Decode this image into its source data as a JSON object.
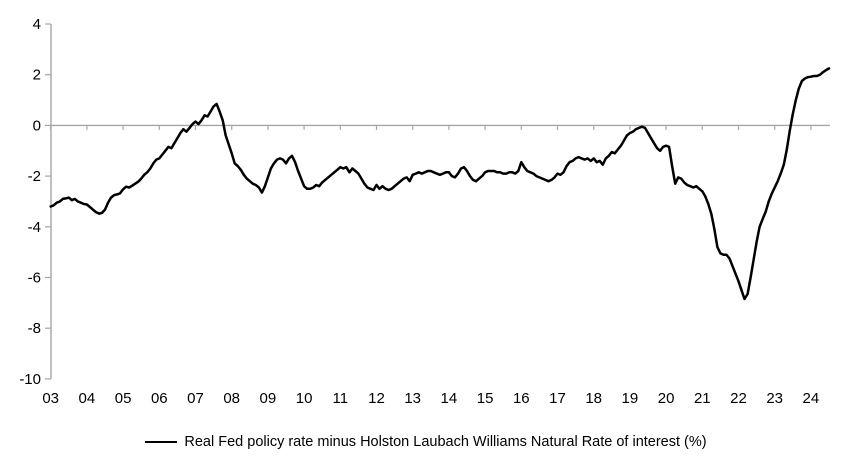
{
  "chart_data": {
    "type": "line",
    "title": "",
    "legend": "Real Fed policy rate minus Holston Laubach Williams Natural Rate of interest (%)",
    "legend_position": "bottom-center",
    "grid": "zero-line-only",
    "line_color": "#000000",
    "axis_color": "#a6a6a6",
    "text_color": "#000000",
    "ylim": [
      -10,
      4
    ],
    "y_tick_values": [
      4,
      2,
      0,
      -2,
      -4,
      -6,
      -8,
      -10
    ],
    "y_tick_labels": [
      "4",
      "2",
      "0",
      "-2",
      "-4",
      "-6",
      "-8",
      "-10"
    ],
    "x_tick_labels": [
      "03",
      "04",
      "05",
      "06",
      "07",
      "08",
      "09",
      "10",
      "11",
      "12",
      "13",
      "14",
      "15",
      "16",
      "17",
      "18",
      "19",
      "20",
      "21",
      "22",
      "23",
      "24"
    ],
    "x_start_year": 2003,
    "series": [
      {
        "name": "Real Fed policy rate minus Holston Laubach Williams Natural Rate of interest (%)",
        "frequency": "monthly",
        "start": "2003-01",
        "end": "2024-07",
        "values": [
          -3.2,
          -3.15,
          -3.05,
          -3.0,
          -2.9,
          -2.88,
          -2.85,
          -2.95,
          -2.9,
          -3.0,
          -3.05,
          -3.1,
          -3.12,
          -3.22,
          -3.32,
          -3.42,
          -3.48,
          -3.45,
          -3.32,
          -3.05,
          -2.85,
          -2.75,
          -2.72,
          -2.68,
          -2.52,
          -2.42,
          -2.45,
          -2.38,
          -2.3,
          -2.22,
          -2.1,
          -1.95,
          -1.85,
          -1.7,
          -1.5,
          -1.35,
          -1.3,
          -1.15,
          -1.0,
          -0.85,
          -0.9,
          -0.7,
          -0.5,
          -0.3,
          -0.15,
          -0.25,
          -0.1,
          0.05,
          0.15,
          0.05,
          0.2,
          0.4,
          0.35,
          0.55,
          0.75,
          0.85,
          0.55,
          0.2,
          -0.4,
          -0.75,
          -1.1,
          -1.5,
          -1.6,
          -1.75,
          -1.95,
          -2.1,
          -2.2,
          -2.3,
          -2.35,
          -2.45,
          -2.65,
          -2.4,
          -2.05,
          -1.7,
          -1.5,
          -1.35,
          -1.3,
          -1.35,
          -1.5,
          -1.3,
          -1.2,
          -1.45,
          -1.8,
          -2.1,
          -2.4,
          -2.5,
          -2.5,
          -2.45,
          -2.35,
          -2.4,
          -2.25,
          -2.15,
          -2.05,
          -1.95,
          -1.85,
          -1.75,
          -1.65,
          -1.7,
          -1.65,
          -1.85,
          -1.7,
          -1.8,
          -1.9,
          -2.1,
          -2.3,
          -2.45,
          -2.5,
          -2.55,
          -2.35,
          -2.5,
          -2.4,
          -2.5,
          -2.55,
          -2.5,
          -2.4,
          -2.3,
          -2.2,
          -2.1,
          -2.05,
          -2.2,
          -1.95,
          -1.9,
          -1.85,
          -1.9,
          -1.85,
          -1.8,
          -1.8,
          -1.85,
          -1.9,
          -1.95,
          -1.9,
          -1.85,
          -1.85,
          -2.0,
          -2.05,
          -1.9,
          -1.7,
          -1.65,
          -1.8,
          -2.0,
          -2.15,
          -2.2,
          -2.1,
          -2.0,
          -1.85,
          -1.8,
          -1.8,
          -1.8,
          -1.85,
          -1.85,
          -1.9,
          -1.9,
          -1.85,
          -1.85,
          -1.9,
          -1.8,
          -1.45,
          -1.65,
          -1.8,
          -1.85,
          -1.9,
          -2.0,
          -2.05,
          -2.1,
          -2.15,
          -2.2,
          -2.15,
          -2.05,
          -1.9,
          -1.95,
          -1.85,
          -1.6,
          -1.45,
          -1.4,
          -1.3,
          -1.25,
          -1.3,
          -1.35,
          -1.3,
          -1.4,
          -1.3,
          -1.45,
          -1.4,
          -1.55,
          -1.3,
          -1.2,
          -1.05,
          -1.1,
          -0.95,
          -0.8,
          -0.6,
          -0.4,
          -0.3,
          -0.25,
          -0.15,
          -0.1,
          -0.05,
          -0.1,
          -0.3,
          -0.5,
          -0.7,
          -0.9,
          -1.0,
          -0.85,
          -0.8,
          -0.85,
          -1.6,
          -2.3,
          -2.05,
          -2.1,
          -2.25,
          -2.35,
          -2.4,
          -2.45,
          -2.4,
          -2.5,
          -2.6,
          -2.8,
          -3.1,
          -3.5,
          -4.1,
          -4.8,
          -5.05,
          -5.1,
          -5.1,
          -5.25,
          -5.55,
          -5.85,
          -6.15,
          -6.5,
          -6.85,
          -6.65,
          -6.0,
          -5.3,
          -4.6,
          -4.0,
          -3.7,
          -3.4,
          -3.0,
          -2.7,
          -2.45,
          -2.2,
          -1.9,
          -1.55,
          -0.95,
          -0.2,
          0.45,
          1.0,
          1.45,
          1.75,
          1.85,
          1.9,
          1.92,
          1.95,
          1.95,
          2.0,
          2.1,
          2.18,
          2.25
        ]
      }
    ]
  }
}
